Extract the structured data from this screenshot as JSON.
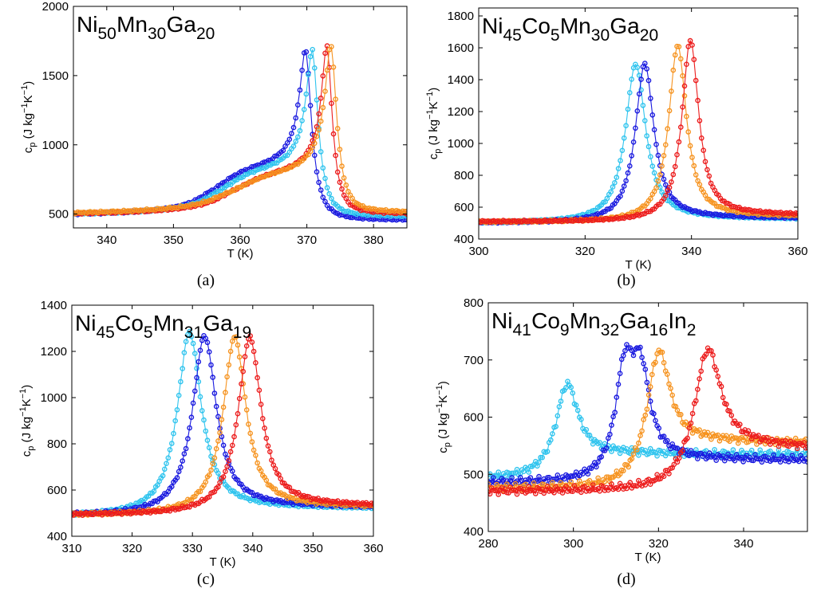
{
  "figure": {
    "series_colors": {
      "dark_blue": "#1a1adf",
      "light_blue": "#2fc4ee",
      "orange": "#f6931f",
      "red": "#ec1c1c"
    }
  },
  "chart_data": [
    {
      "type": "scatter",
      "panel": "a",
      "caption": "(a)",
      "title_parts": [
        [
          "Ni",
          "50"
        ],
        [
          "Mn",
          "30"
        ],
        [
          "Ga",
          "20"
        ]
      ],
      "xlabel": "T (K)",
      "ylabel": "c",
      "ylabel_sub": "p",
      "ylabel_units": "(J kg",
      "ylabel_units2": "K",
      "ylabel_sup": "−1",
      "xlim": [
        335,
        385
      ],
      "ylim": [
        400,
        2000
      ],
      "xticks": [
        340,
        350,
        360,
        370,
        380
      ],
      "yticks": [
        500,
        1000,
        1500,
        2000
      ],
      "series": [
        {
          "name": "dark blue",
          "color": "#1a1adf",
          "base": 480,
          "end": 455,
          "dropwidth": 1.7,
          "steps": [
            {
              "x": 357,
              "h": 240,
              "w": 2.0
            }
          ],
          "peaks": [
            {
              "x": 369.8,
              "h": 1035,
              "w": 1.0,
              "tail": 5.0
            }
          ],
          "xmin": 335,
          "xmax": 385,
          "n": 160
        },
        {
          "name": "light blue",
          "color": "#2fc4ee",
          "base": 482,
          "end": 480,
          "dropwidth": 1.8,
          "steps": [
            {
              "x": 358,
              "h": 220,
              "w": 2.0
            }
          ],
          "peaks": [
            {
              "x": 370.8,
              "h": 1040,
              "w": 1.0,
              "tail": 5.0
            }
          ],
          "xmin": 335,
          "xmax": 385,
          "n": 160
        },
        {
          "name": "red",
          "color": "#ec1c1c",
          "base": 485,
          "end": 500,
          "dropwidth": 1.6,
          "steps": [
            {
              "x": 360,
              "h": 190,
              "w": 2.2
            }
          ],
          "peaks": [
            {
              "x": 373.0,
              "h": 1090,
              "w": 0.9,
              "tail": 5.0
            }
          ],
          "xmin": 335,
          "xmax": 385,
          "n": 160
        },
        {
          "name": "orange",
          "color": "#f6931f",
          "base": 488,
          "end": 510,
          "dropwidth": 1.9,
          "steps": [
            {
              "x": 360,
              "h": 180,
              "w": 2.2
            }
          ],
          "peaks": [
            {
              "x": 373.6,
              "h": 1090,
              "w": 1.0,
              "tail": 5.5
            }
          ],
          "xmin": 335,
          "xmax": 385,
          "n": 160
        }
      ]
    },
    {
      "type": "scatter",
      "panel": "b",
      "caption": "(b)",
      "title_parts": [
        [
          "Ni",
          "45"
        ],
        [
          "Co",
          "5"
        ],
        [
          "Mn",
          "30"
        ],
        [
          "Ga",
          "20"
        ]
      ],
      "xlabel": "T (K)",
      "ylabel": "c",
      "ylabel_sub": "p",
      "ylabel_units": "(J kg",
      "ylabel_units2": "K",
      "ylabel_sup": "−1",
      "xlim": [
        300,
        360
      ],
      "ylim": [
        400,
        1850
      ],
      "xticks": [
        300,
        320,
        340,
        360
      ],
      "yticks": [
        400,
        600,
        800,
        1000,
        1200,
        1400,
        1600,
        1800
      ],
      "series": [
        {
          "name": "light blue",
          "color": "#2fc4ee",
          "base": 500,
          "end": 525,
          "peaks": [
            {
              "x": 329.5,
              "h": 990,
              "w": 2.3
            }
          ],
          "xmin": 300,
          "xmax": 360,
          "n": 170
        },
        {
          "name": "dark blue",
          "color": "#1a1adf",
          "base": 500,
          "end": 530,
          "peaks": [
            {
              "x": 331.2,
              "h": 990,
              "w": 2.1
            }
          ],
          "xmin": 300,
          "xmax": 360,
          "n": 170
        },
        {
          "name": "orange",
          "color": "#f6931f",
          "base": 505,
          "end": 540,
          "peaks": [
            {
              "x": 337.4,
              "h": 1100,
              "w": 2.0
            }
          ],
          "xmin": 300,
          "xmax": 360,
          "n": 170
        },
        {
          "name": "red",
          "color": "#ec1c1c",
          "base": 508,
          "end": 550,
          "peaks": [
            {
              "x": 339.8,
              "h": 1125,
              "w": 1.9
            }
          ],
          "xmin": 300,
          "xmax": 360,
          "n": 170
        }
      ]
    },
    {
      "type": "scatter",
      "panel": "c",
      "caption": "(c)",
      "title_parts": [
        [
          "Ni",
          "45"
        ],
        [
          "Co",
          "5"
        ],
        [
          "Mn",
          "31"
        ],
        [
          "Ga",
          "19"
        ]
      ],
      "xlabel": "T (K)",
      "ylabel": "c",
      "ylabel_sub": "p",
      "ylabel_units": "(J kg",
      "ylabel_units2": "K",
      "ylabel_sup": "−1",
      "xlim": [
        310,
        360
      ],
      "ylim": [
        400,
        1400
      ],
      "xticks": [
        310,
        320,
        330,
        340,
        350,
        360
      ],
      "yticks": [
        400,
        600,
        800,
        1000,
        1200,
        1400
      ],
      "series": [
        {
          "name": "light blue",
          "color": "#2fc4ee",
          "base": 485,
          "end": 520,
          "peaks": [
            {
              "x": 329.5,
              "h": 785,
              "w": 2.4
            }
          ],
          "xmin": 310,
          "xmax": 360,
          "n": 170
        },
        {
          "name": "dark blue",
          "color": "#1a1adf",
          "base": 488,
          "end": 525,
          "peaks": [
            {
              "x": 332.0,
              "h": 765,
              "w": 2.4
            }
          ],
          "xmin": 310,
          "xmax": 360,
          "n": 170
        },
        {
          "name": "orange",
          "color": "#f6931f",
          "base": 490,
          "end": 525,
          "peaks": [
            {
              "x": 337.0,
              "h": 760,
              "w": 2.3
            }
          ],
          "xmin": 310,
          "xmax": 360,
          "n": 170
        },
        {
          "name": "red",
          "color": "#ec1c1c",
          "base": 492,
          "end": 530,
          "peaks": [
            {
              "x": 339.5,
              "h": 755,
              "w": 2.3
            }
          ],
          "xmin": 310,
          "xmax": 360,
          "n": 170
        }
      ]
    },
    {
      "type": "scatter",
      "panel": "d",
      "caption": "(d)",
      "title_parts": [
        [
          "Ni",
          "41"
        ],
        [
          "Co",
          "9"
        ],
        [
          "Mn",
          "32"
        ],
        [
          "Ga",
          "16"
        ],
        [
          "In",
          "2"
        ]
      ],
      "xlabel": "T (K)",
      "ylabel": "c",
      "ylabel_sub": "p",
      "ylabel_units": "(J kg",
      "ylabel_units2": "K",
      "ylabel_sup": "−1",
      "xlim": [
        280,
        355
      ],
      "ylim": [
        400,
        800
      ],
      "xticks": [
        280,
        300,
        320,
        340
      ],
      "yticks": [
        400,
        500,
        600,
        700,
        800
      ],
      "series": [
        {
          "name": "light blue",
          "color": "#2fc4ee",
          "base": 492,
          "end": 535,
          "peaks": [
            {
              "x": 298.5,
              "h": 150,
              "w": 3.2
            }
          ],
          "xmin": 280,
          "xmax": 355,
          "n": 190
        },
        {
          "name": "dark blue",
          "color": "#1a1adf",
          "base": 485,
          "end": 525,
          "peaks": [
            {
              "x": 312.0,
              "h": 170,
              "w": 2.6
            },
            {
              "x": 315.8,
              "h": 150,
              "w": 2.6
            }
          ],
          "xmin": 280,
          "xmax": 355,
          "n": 190
        },
        {
          "name": "orange",
          "color": "#f6931f",
          "base": 475,
          "end": 555,
          "peaks": [
            {
              "x": 320.0,
              "h": 210,
              "w": 3.4
            }
          ],
          "xmin": 280,
          "xmax": 355,
          "n": 190
        },
        {
          "name": "red",
          "color": "#ec1c1c",
          "base": 470,
          "end": 545,
          "peaks": [
            {
              "x": 331.5,
              "h": 220,
              "w": 3.9
            }
          ],
          "xmin": 280,
          "xmax": 355,
          "n": 190
        }
      ]
    }
  ]
}
